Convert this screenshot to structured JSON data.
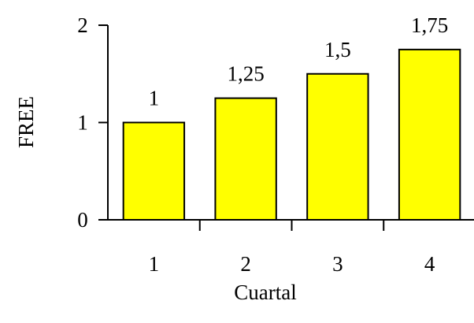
{
  "chart_data": {
    "type": "bar",
    "categories": [
      "1",
      "2",
      "3",
      "4"
    ],
    "values": [
      1,
      1.25,
      1.5,
      1.75
    ],
    "data_labels": [
      "1",
      "1,25",
      "1,5",
      "1,75"
    ],
    "xlabel": "Cuartal",
    "ylabel": "FREE",
    "ylim": [
      0,
      2
    ],
    "y_ticks": [
      0,
      1,
      2
    ],
    "y_tick_labels": [
      "0",
      "1",
      "2"
    ],
    "grid": false,
    "legend": "none",
    "bar_color": "#FFFF00",
    "bar_edge_color": "#000000"
  }
}
